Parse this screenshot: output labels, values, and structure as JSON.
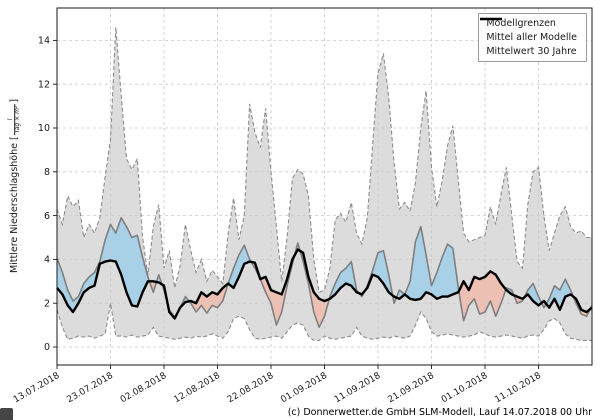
{
  "meta": {
    "caption": "(c) Donnerwetter.de GmbH SLM-Modell, Lauf 14.07.2018 00 Uhr"
  },
  "chart_data": {
    "type": "line",
    "title": "",
    "xlabel": "",
    "ylabel": {
      "prefix": "Mittlere Niederschlagshöhe [",
      "frac_num": "l",
      "frac_den": "Tag × m²",
      "suffix": "]"
    },
    "grid": true,
    "x_unit": "days since 13.07.2018",
    "x_range_days": [
      0,
      100
    ],
    "ylim": [
      -0.85,
      15.5
    ],
    "y_ticks": [
      0,
      2,
      4,
      6,
      8,
      10,
      12,
      14
    ],
    "x_tick_days": [
      0,
      10,
      20,
      30,
      40,
      50,
      60,
      70,
      80,
      90
    ],
    "x_tick_labels": [
      "13.07.2018",
      "23.07.2018",
      "02.08.2018",
      "12.08.2018",
      "22.08.2018",
      "01.09.2018",
      "11.09.2018",
      "21.09.2018",
      "01.10.2018",
      "11.10.2018"
    ],
    "legend": {
      "position": "top-right",
      "items": [
        {
          "label": "Modellgrenzen",
          "style": "dashed-gray"
        },
        {
          "label": "Mittel aller Modelle",
          "style": "solid-gray"
        },
        {
          "label": "Mittelwert 30 Jahre",
          "style": "solid-black-thick"
        }
      ]
    },
    "series": [
      {
        "name": "Modellgrenzen max",
        "role": "upper_bound",
        "values": [
          6.3,
          5.6,
          6.9,
          6.4,
          6.7,
          5.0,
          5.6,
          5.2,
          5.9,
          7.8,
          9.5,
          14.6,
          11.5,
          8.6,
          8.1,
          8.6,
          5.0,
          3.3,
          5.5,
          6.5,
          3.6,
          4.4,
          2.7,
          3.7,
          5.6,
          4.4,
          3.4,
          4.0,
          3.0,
          3.5,
          3.2,
          2.9,
          5.2,
          6.8,
          4.9,
          6.0,
          11.1,
          9.8,
          9.1,
          10.9,
          8.0,
          5.5,
          3.0,
          5.0,
          7.7,
          8.1,
          7.9,
          6.9,
          4.0,
          2.5,
          2.6,
          3.6,
          5.8,
          6.1,
          5.7,
          6.6,
          5.2,
          4.7,
          5.9,
          9.2,
          12.5,
          13.4,
          11.4,
          8.4,
          6.3,
          6.6,
          6.2,
          7.5,
          10.0,
          11.7,
          8.2,
          6.4,
          7.6,
          9.2,
          10.1,
          7.6,
          5.2,
          4.8,
          4.9,
          5.0,
          5.1,
          6.4,
          5.6,
          7.0,
          8.2,
          6.0,
          3.9,
          3.6,
          6.5,
          8.0,
          8.2,
          6.0,
          4.4,
          5.2,
          6.0,
          6.4,
          5.5,
          5.2,
          5.3,
          5.0,
          5.0
        ]
      },
      {
        "name": "Modellgrenzen min",
        "role": "lower_bound",
        "values": [
          1.7,
          0.9,
          0.35,
          0.4,
          0.5,
          0.45,
          0.5,
          0.4,
          0.5,
          0.6,
          2.0,
          0.5,
          0.5,
          0.45,
          0.55,
          0.45,
          0.5,
          0.55,
          0.9,
          0.5,
          0.45,
          0.4,
          0.35,
          0.4,
          0.45,
          0.4,
          0.5,
          0.45,
          0.5,
          0.6,
          0.5,
          0.4,
          0.7,
          1.3,
          1.4,
          1.3,
          0.8,
          0.4,
          0.35,
          0.4,
          0.45,
          0.5,
          0.4,
          0.7,
          1.0,
          1.1,
          1.0,
          0.5,
          0.3,
          0.3,
          0.5,
          0.4,
          0.35,
          0.4,
          0.45,
          0.5,
          0.9,
          0.5,
          0.4,
          0.35,
          0.4,
          0.45,
          0.4,
          0.5,
          0.45,
          0.4,
          0.5,
          1.0,
          1.6,
          1.3,
          0.7,
          0.5,
          0.55,
          0.6,
          0.55,
          0.5,
          0.45,
          0.5,
          0.55,
          0.7,
          0.6,
          0.5,
          0.45,
          0.5,
          0.55,
          0.5,
          0.45,
          0.4,
          0.5,
          0.55,
          0.5,
          0.8,
          1.2,
          1.3,
          1.1,
          0.6,
          0.4,
          0.35,
          0.3,
          0.3,
          0.3
        ]
      },
      {
        "name": "Mittel aller Modelle",
        "role": "model_mean",
        "values": [
          4.05,
          3.4,
          2.6,
          2.1,
          2.3,
          2.9,
          3.2,
          3.4,
          3.9,
          4.9,
          5.6,
          5.2,
          5.9,
          5.5,
          5.0,
          5.1,
          4.1,
          3.2,
          2.5,
          3.3,
          2.6,
          1.7,
          1.35,
          1.8,
          2.3,
          2.0,
          1.6,
          1.9,
          1.55,
          1.9,
          1.8,
          2.1,
          2.9,
          3.6,
          4.2,
          4.65,
          4.0,
          3.6,
          3.1,
          2.5,
          2.0,
          1.0,
          1.6,
          2.8,
          3.8,
          4.75,
          3.9,
          2.9,
          1.6,
          0.9,
          1.4,
          2.3,
          2.9,
          3.4,
          3.6,
          3.9,
          2.6,
          2.3,
          2.8,
          3.5,
          4.3,
          4.4,
          3.3,
          2.0,
          2.6,
          2.4,
          3.0,
          4.8,
          5.5,
          4.2,
          2.8,
          3.4,
          4.1,
          4.7,
          4.5,
          2.7,
          1.2,
          1.9,
          2.2,
          1.5,
          1.6,
          2.1,
          1.4,
          2.0,
          2.7,
          2.6,
          2.0,
          2.1,
          2.6,
          2.9,
          2.3,
          1.8,
          2.2,
          2.8,
          2.6,
          3.1,
          2.6,
          2.0,
          1.5,
          1.4,
          1.9
        ]
      },
      {
        "name": "Mittelwert 30 Jahre",
        "role": "mean_30y",
        "values": [
          2.7,
          2.4,
          1.9,
          1.6,
          2.0,
          2.5,
          2.7,
          2.8,
          3.8,
          3.9,
          3.95,
          3.9,
          3.3,
          2.5,
          1.9,
          1.85,
          2.5,
          3.0,
          3.0,
          2.95,
          2.8,
          1.6,
          1.3,
          1.8,
          2.05,
          2.1,
          2.0,
          2.5,
          2.3,
          2.5,
          2.4,
          2.7,
          2.9,
          2.7,
          3.2,
          3.8,
          3.9,
          3.85,
          3.1,
          3.2,
          2.6,
          2.5,
          2.4,
          3.1,
          4.0,
          4.45,
          4.3,
          3.2,
          2.5,
          2.2,
          2.1,
          2.2,
          2.4,
          2.7,
          2.9,
          2.8,
          2.5,
          2.4,
          2.7,
          3.3,
          3.2,
          2.9,
          2.5,
          2.3,
          2.2,
          2.4,
          2.2,
          2.15,
          2.2,
          2.5,
          2.4,
          2.2,
          2.3,
          2.3,
          2.4,
          2.5,
          3.0,
          2.6,
          3.2,
          3.1,
          3.2,
          3.45,
          3.3,
          2.9,
          2.6,
          2.4,
          2.3,
          2.2,
          2.4,
          2.1,
          1.9,
          2.1,
          1.8,
          2.2,
          1.7,
          2.3,
          2.4,
          2.2,
          1.7,
          1.6,
          1.8
        ]
      }
    ],
    "colors": {
      "band_fill": "#dcdcdc",
      "band_edge": "#8c8c8c",
      "above_fill": "rgba(125,200,242,0.55)",
      "below_fill": "rgba(255,164,140,0.5)",
      "model_mean_line": "#7f7f7f",
      "mean_30y_line": "#000000",
      "grid": "#c9c9c9",
      "spine": "#1a1a1a"
    }
  }
}
